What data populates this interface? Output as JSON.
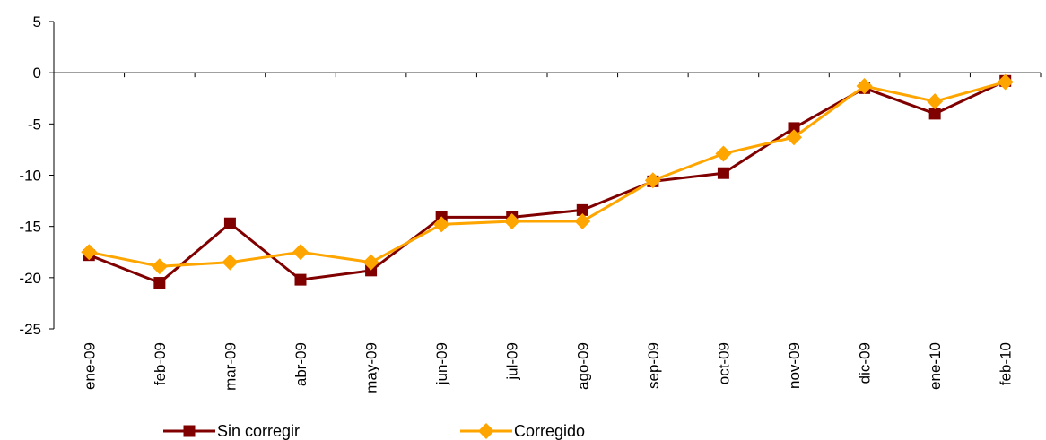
{
  "chart_data": {
    "type": "line",
    "categories": [
      "ene-09",
      "feb-09",
      "mar-09",
      "abr-09",
      "may-09",
      "jun-09",
      "jul-09",
      "ago-09",
      "sep-09",
      "oct-09",
      "nov-09",
      "dic-09",
      "ene-10",
      "feb-10"
    ],
    "ylim": [
      -25,
      5
    ],
    "yticks": [
      5,
      0,
      -5,
      -10,
      -15,
      -20,
      -25
    ],
    "grid": false,
    "legend_position": "bottom",
    "series": [
      {
        "name": "Sin corregir",
        "color": "#800000",
        "marker": "square",
        "values": [
          -17.8,
          -20.5,
          -14.7,
          -20.2,
          -19.3,
          -14.1,
          -14.1,
          -13.4,
          -10.6,
          -9.8,
          -5.4,
          -1.5,
          -4.0,
          -0.8
        ]
      },
      {
        "name": "Corregido",
        "color": "#FFA500",
        "marker": "diamond",
        "values": [
          -17.5,
          -18.9,
          -18.5,
          -17.5,
          -18.5,
          -14.8,
          -14.5,
          -14.5,
          -10.5,
          -7.9,
          -6.3,
          -1.3,
          -2.8,
          -0.9
        ]
      }
    ]
  }
}
